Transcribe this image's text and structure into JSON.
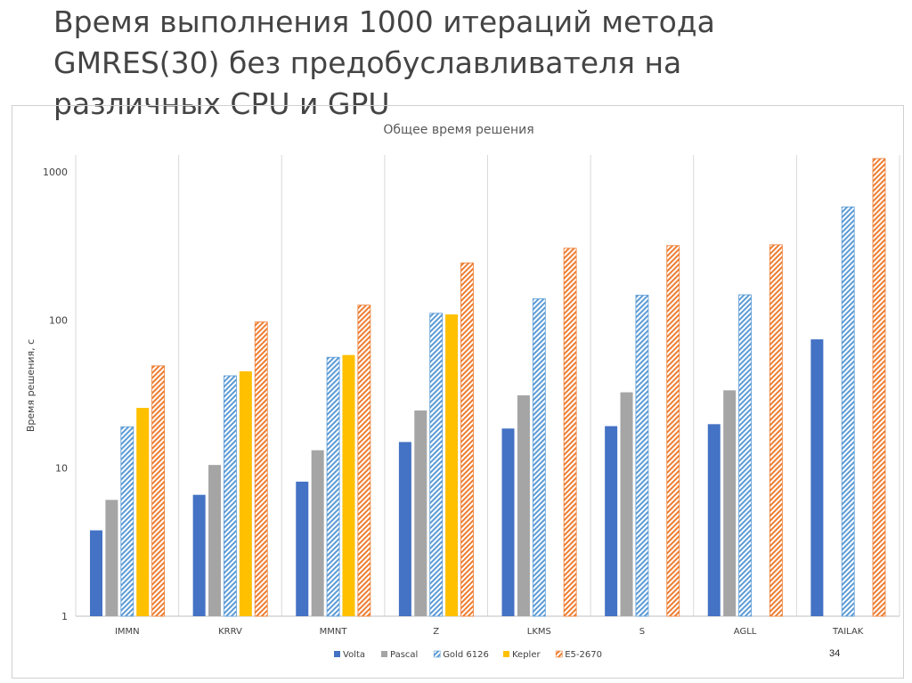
{
  "slide": {
    "title_lines": [
      "Время выполнения 1000 итераций метода",
      "GMRES(30) без предобуславливателя на",
      "различных CPU и GPU"
    ],
    "page_number": "34"
  },
  "colors": {
    "volta": "#4472c4",
    "pascal": "#a5a5a5",
    "gold": "#5b9bd5",
    "kepler": "#ffc000",
    "e5": "#ed7d31"
  },
  "chart_data": {
    "type": "bar",
    "title": "Общее время решения",
    "xlabel": "",
    "ylabel": "Время решения, с",
    "yscale": "log",
    "ylim": [
      1,
      1300
    ],
    "yticks": [
      1,
      10,
      100,
      1000
    ],
    "ytick_labels": [
      "1",
      "10",
      "100",
      "1000"
    ],
    "grid": "vertical category separators",
    "legend_position": "bottom",
    "categories": [
      "IMMN",
      "KRRV",
      "MMNT",
      "Z",
      "LKMS",
      "S",
      "AGLL",
      "TAILAK"
    ],
    "series": [
      {
        "name": "Volta",
        "pattern": "solid",
        "color": "#4472c4",
        "values": [
          3.8,
          6.6,
          8.1,
          15,
          18.5,
          19.2,
          19.8,
          74
        ]
      },
      {
        "name": "Pascal",
        "pattern": "solid",
        "color": "#a5a5a5",
        "values": [
          6.1,
          10.5,
          13.2,
          24.5,
          31,
          32.5,
          33.5,
          null
        ]
      },
      {
        "name": "Gold 6126",
        "pattern": "hatch",
        "color": "#5b9bd5",
        "values": [
          19,
          42,
          56,
          111,
          139,
          147,
          148,
          580
        ]
      },
      {
        "name": "Kepler",
        "pattern": "solid",
        "color": "#ffc000",
        "values": [
          25.5,
          45,
          58,
          109,
          null,
          null,
          null,
          null
        ]
      },
      {
        "name": "E5-2670",
        "pattern": "hatch",
        "color": "#ed7d31",
        "values": [
          49,
          97,
          126,
          243,
          305,
          318,
          322,
          1230
        ]
      }
    ]
  }
}
